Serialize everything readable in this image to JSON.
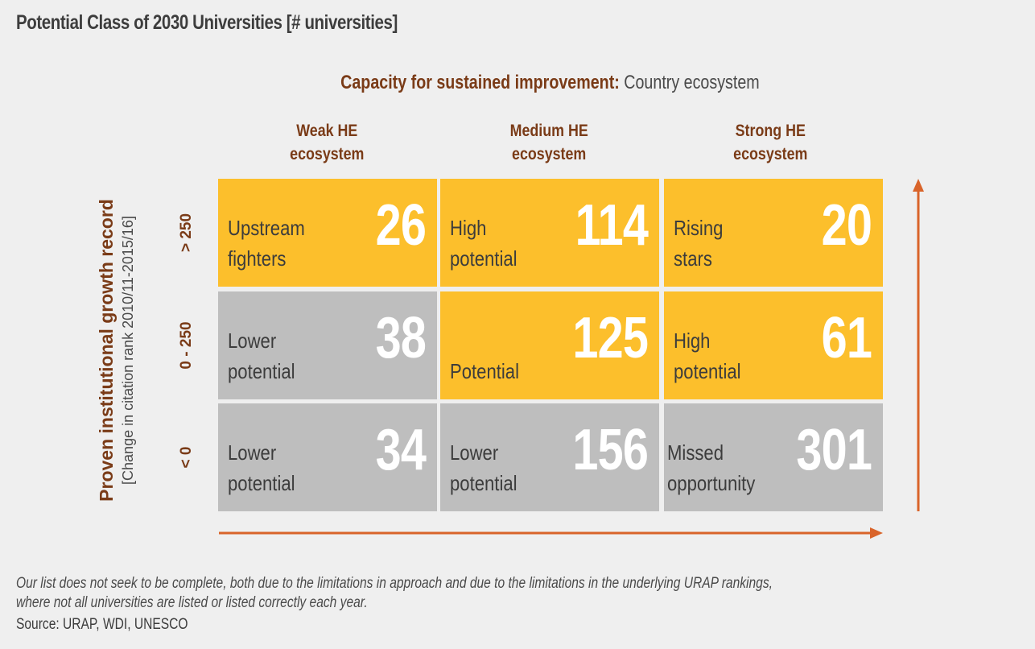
{
  "chart_data": {
    "type": "table",
    "title": "Potential Class of 2030 Universities [# universities]",
    "xlabel_bold": "Capacity for sustained improvement:",
    "xlabel_normal": " Country ecosystem",
    "ylabel": "Proven institutional growth record",
    "ylabel_sub": "[Change in citation rank 2010/11-2015/16]",
    "columns": [
      "Weak HE\necosystem",
      "Medium HE\necosystem",
      "Strong HE\necosystem"
    ],
    "rows": [
      "> 250",
      "0 - 250",
      "< 0"
    ],
    "cells": [
      [
        {
          "label": "Upstream\nfighters",
          "value": "26",
          "color": "#fcbf2c"
        },
        {
          "label": "High\npotential",
          "value": "114",
          "color": "#fcbf2c"
        },
        {
          "label": "Rising\nstars",
          "value": "20",
          "color": "#fcbf2c"
        }
      ],
      [
        {
          "label": "Lower\npotential",
          "value": "38",
          "color": "#bebebe"
        },
        {
          "label": "Potential",
          "value": "125",
          "color": "#fcbf2c"
        },
        {
          "label": "High\npotential",
          "value": "61",
          "color": "#fcbf2c"
        }
      ],
      [
        {
          "label": "Lower\npotential",
          "value": "34",
          "color": "#bebebe"
        },
        {
          "label": "Lower\npotential",
          "value": "156",
          "color": "#bebebe"
        },
        {
          "label": "Missed\nopportunity",
          "value": "301",
          "color": "#bebebe"
        }
      ]
    ],
    "arrow_color": "#d9642a"
  },
  "footnote": "Our list does not seek to be complete, both due to the limitations in approach and due to the limitations in the underlying URAP rankings,\nwhere not all universities are listed or listed correctly each year.",
  "source": "Source: URAP, WDI, UNESCO"
}
